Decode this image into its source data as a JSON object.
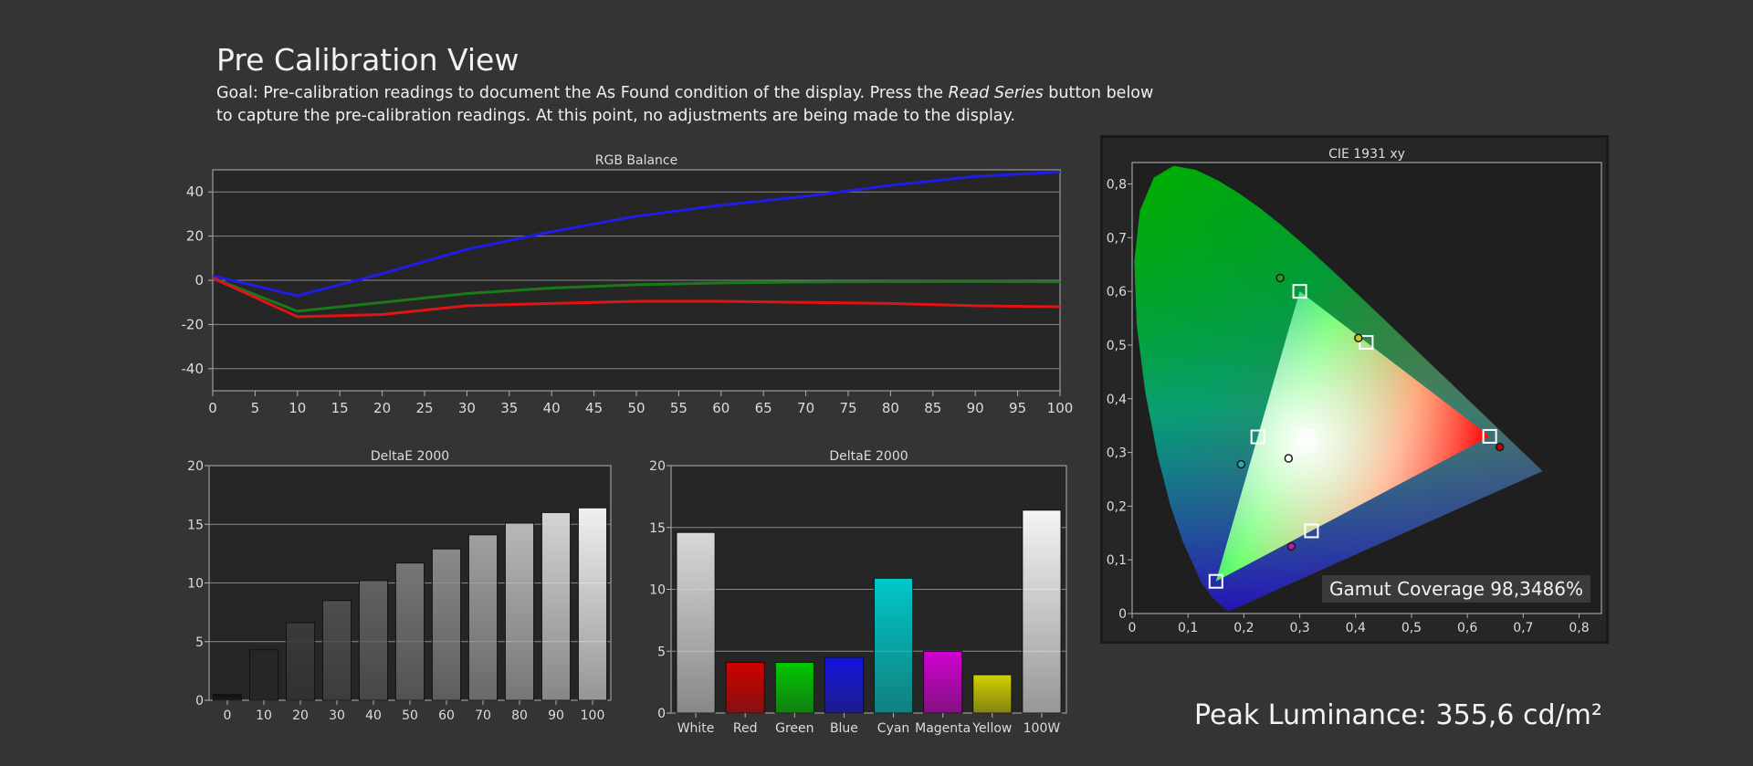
{
  "page": {
    "title": "Pre Calibration View",
    "goal_prefix": "Goal: Pre-calibration readings to document the As Found condition of the display. Press the ",
    "goal_emph": "Read Series",
    "goal_suffix": " button below to capture the pre-calibration readings. At this point, no adjustments are being made to the display.",
    "gamut_coverage": "Gamut Coverage 98,3486%",
    "peak_luminance": "Peak Luminance: 355,6 cd/m²"
  },
  "chart_data": [
    {
      "id": "rgb",
      "type": "line",
      "title": "RGB Balance",
      "x": [
        0,
        10,
        20,
        30,
        40,
        50,
        60,
        70,
        80,
        90,
        100
      ],
      "xticks": [
        0,
        5,
        10,
        15,
        20,
        25,
        30,
        35,
        40,
        45,
        50,
        55,
        60,
        65,
        70,
        75,
        80,
        85,
        90,
        95,
        100
      ],
      "xlim": [
        0,
        100
      ],
      "ylim": [
        -50,
        50
      ],
      "yticks": [
        40,
        20,
        0,
        -20,
        -40
      ],
      "ytick_labels": [
        "40",
        "20",
        "0",
        "-20",
        "-40"
      ],
      "grid": true,
      "series": [
        {
          "color": "#1e1ee6",
          "values": [
            2,
            -7,
            3,
            14,
            22,
            29,
            34,
            38,
            43,
            47,
            49
          ]
        },
        {
          "color": "#1a7a1a",
          "values": [
            1,
            -14,
            -10,
            -6,
            -3.5,
            -2,
            -1.2,
            -0.8,
            -0.6,
            -0.5,
            -0.7
          ]
        },
        {
          "color": "#e01414",
          "values": [
            1,
            -16.5,
            -15.5,
            -11.5,
            -10.5,
            -9.5,
            -9.5,
            -10,
            -10.5,
            -11.5,
            -12
          ]
        }
      ]
    },
    {
      "id": "de_gray",
      "type": "bar",
      "title": "DeltaE 2000",
      "categories": [
        "0",
        "10",
        "20",
        "30",
        "40",
        "50",
        "60",
        "70",
        "80",
        "90",
        "100"
      ],
      "values": [
        0.5,
        4.3,
        6.6,
        8.5,
        10.2,
        11.7,
        12.9,
        14.1,
        15.1,
        16,
        16.4
      ],
      "colors": [
        "#101010",
        "#262626",
        "#3a3a3a",
        "#4e4e4e",
        "#626262",
        "#767676",
        "#8a8a8a",
        "#a0a0a0",
        "#b8b8b8",
        "#d4d4d4",
        "#f0f0f0"
      ],
      "ylim": [
        0,
        20
      ],
      "yticks": [
        20,
        15,
        10,
        5,
        0
      ],
      "ytick_labels": [
        "20",
        "15",
        "10",
        "5",
        "0"
      ],
      "grid": true
    },
    {
      "id": "de_color",
      "type": "bar",
      "title": "DeltaE 2000",
      "categories": [
        "White",
        "Red",
        "Green",
        "Blue",
        "Cyan",
        "Magenta",
        "Yellow",
        "100W"
      ],
      "values": [
        14.6,
        4.1,
        4.1,
        4.5,
        10.9,
        5,
        3.1,
        16.4
      ],
      "colors": [
        "#d8d8d8",
        "#d00000",
        "#00c800",
        "#1414e0",
        "#00c8c8",
        "#d000d0",
        "#d0d000",
        "#f4f4f4"
      ],
      "ylim": [
        0,
        20
      ],
      "yticks": [
        20,
        15,
        10,
        5,
        0
      ],
      "ytick_labels": [
        "20",
        "15",
        "10",
        "5",
        "0"
      ],
      "grid": true
    },
    {
      "id": "cie",
      "type": "scatter",
      "title": "CIE 1931 xy",
      "xlim": [
        0,
        0.84
      ],
      "ylim": [
        0,
        0.84
      ],
      "xticks": [
        0,
        0.1,
        0.2,
        0.3,
        0.4,
        0.5,
        0.6,
        0.7,
        0.8
      ],
      "xtick_labels": [
        "0",
        "0,1",
        "0,2",
        "0,3",
        "0,4",
        "0,5",
        "0,6",
        "0,7",
        "0,8"
      ],
      "yticks": [
        0,
        0.1,
        0.2,
        0.3,
        0.4,
        0.5,
        0.6,
        0.7,
        0.8
      ],
      "ytick_labels": [
        "0",
        "0,1",
        "0,2",
        "0,3",
        "0,4",
        "0,5",
        "0,6",
        "0,7",
        "0,8"
      ],
      "gamut_triangle": [
        [
          0.64,
          0.33
        ],
        [
          0.3,
          0.6
        ],
        [
          0.15,
          0.06
        ]
      ],
      "targets": [
        {
          "x": 0.64,
          "y": 0.33
        },
        {
          "x": 0.3,
          "y": 0.6
        },
        {
          "x": 0.15,
          "y": 0.06
        },
        {
          "x": 0.225,
          "y": 0.329
        },
        {
          "x": 0.321,
          "y": 0.154
        },
        {
          "x": 0.419,
          "y": 0.505
        },
        {
          "x": 0.3127,
          "y": 0.329
        }
      ],
      "measured": [
        {
          "x": 0.658,
          "y": 0.31,
          "color": "#c00000"
        },
        {
          "x": 0.265,
          "y": 0.625,
          "color": "#20a020"
        },
        {
          "x": 0.195,
          "y": 0.278,
          "color": "#20b0b0"
        },
        {
          "x": 0.285,
          "y": 0.125,
          "color": "#b020b0"
        },
        {
          "x": 0.405,
          "y": 0.513,
          "color": "#c8c820"
        },
        {
          "x": 0.28,
          "y": 0.289,
          "color": "#ffffff"
        }
      ]
    }
  ]
}
